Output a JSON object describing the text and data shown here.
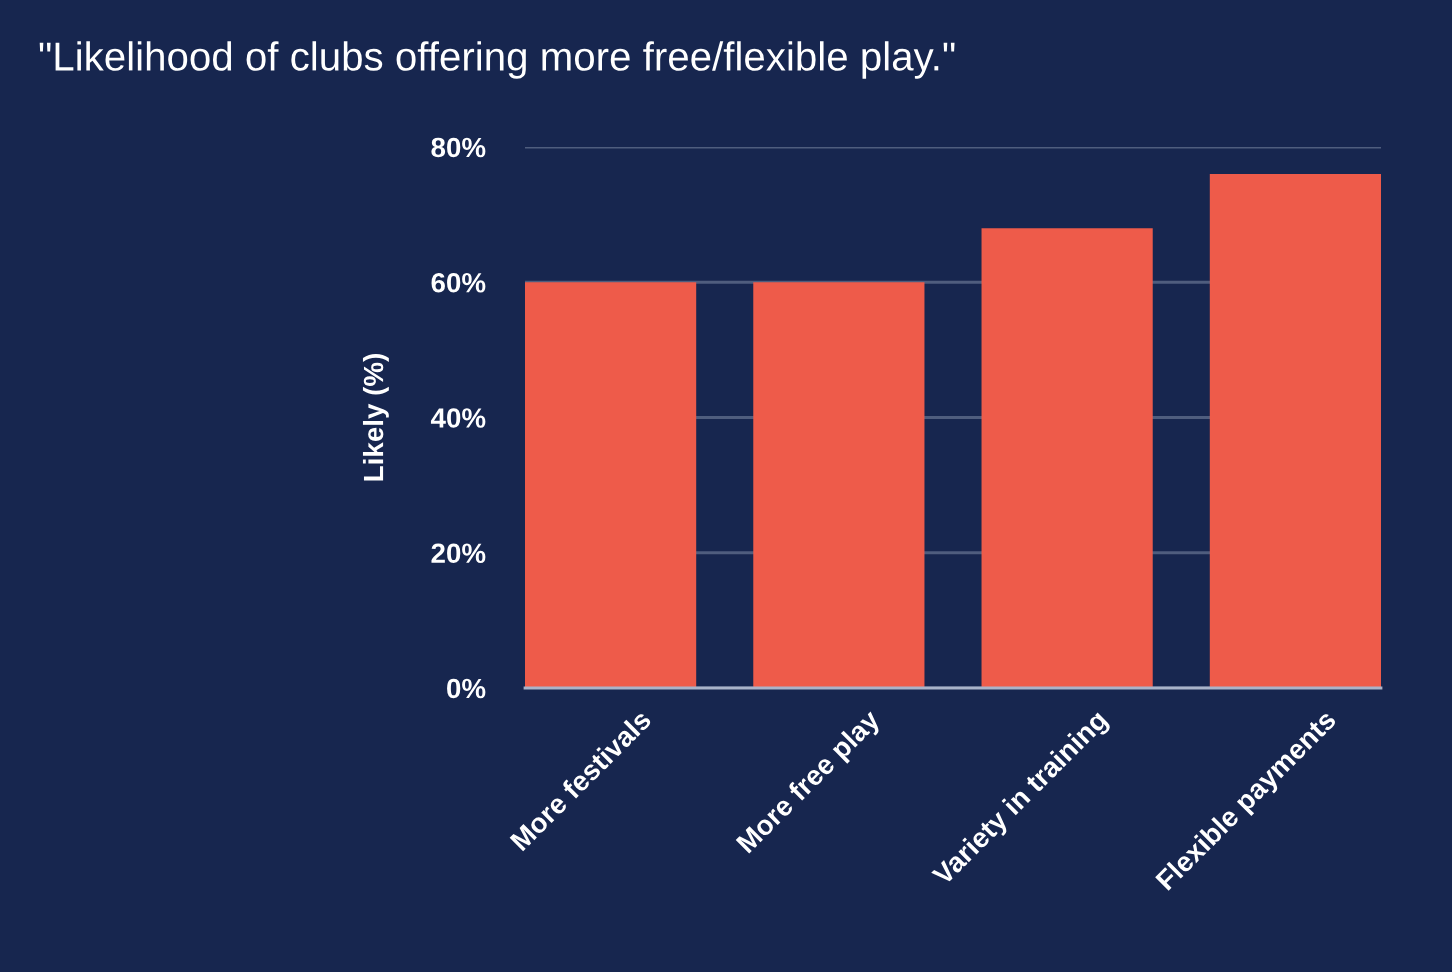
{
  "chart_data": {
    "type": "bar",
    "title": "\"Likelihood of clubs offering more free/flexible play.\"",
    "ylabel": "Likely (%)",
    "categories": [
      "More festivals",
      "More free play",
      "Variety in training",
      "Flexible payments"
    ],
    "values": [
      60,
      60,
      68,
      76
    ],
    "color": "#ee5b4a",
    "ylim": [
      0,
      80
    ],
    "yticks": [
      {
        "value": 0,
        "label": "0%"
      },
      {
        "value": 20,
        "label": "20%"
      },
      {
        "value": 40,
        "label": "40%"
      },
      {
        "value": 60,
        "label": "60%"
      },
      {
        "value": 80,
        "label": "80%"
      }
    ],
    "grid": "y",
    "legend": false
  }
}
